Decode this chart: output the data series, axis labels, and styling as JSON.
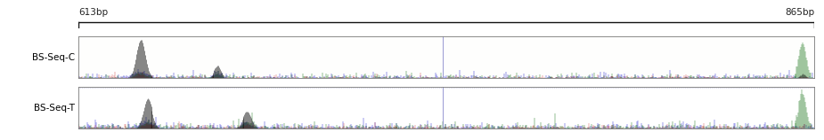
{
  "label_left": "613bp",
  "label_right": "865bp",
  "row_labels": [
    "BS-Seq-C",
    "BS-Seq-T"
  ],
  "n_points": 850,
  "background_color": "#ffffff",
  "panel_bg_c": "#fafafa",
  "panel_bg_t": "#ffffff",
  "ruler_color": "#111111",
  "vline_color": "#8888cc",
  "vline_pos": 0.495,
  "colors_blue": "#1111cc",
  "colors_green": "#006600",
  "colors_red": "#cc2222",
  "colors_black": "#111111",
  "figsize": [
    9.25,
    1.58
  ],
  "dpi": 100,
  "label_fontsize": 7.5
}
